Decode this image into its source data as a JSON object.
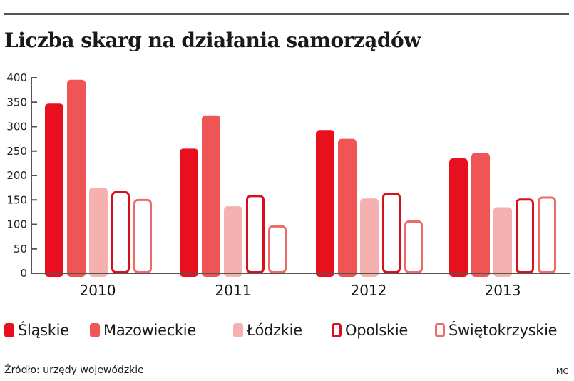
{
  "title": "Liczba skarg na działania samorządów",
  "source": "Źródło: urzędy wojewódzkie",
  "author": "MC",
  "colors": {
    "slaskie": "#e8101e",
    "mazowieckie": "#ef5555",
    "lodzkie": "#f5b0b0",
    "opolskie_border": "#d8101e",
    "swietokrzyskie_border": "#ec6a6a",
    "axis": "#555555"
  },
  "chart_data": {
    "type": "bar",
    "title": "Liczba skarg na działania samorządów",
    "xlabel": "",
    "ylabel": "",
    "ylim": [
      0,
      400
    ],
    "yticks": [
      0,
      50,
      100,
      150,
      200,
      250,
      300,
      350,
      400
    ],
    "grid": false,
    "legend_position": "bottom",
    "categories": [
      "2010",
      "2011",
      "2012",
      "2013"
    ],
    "series": [
      {
        "name": "Śląskie",
        "style": "filled",
        "color": "#e8101e",
        "values": [
          347,
          255,
          293,
          235
        ]
      },
      {
        "name": "Mazowieckie",
        "style": "filled",
        "color": "#ef5555",
        "values": [
          396,
          323,
          275,
          246
        ]
      },
      {
        "name": "Łódzkie",
        "style": "filled",
        "color": "#f5b0b0",
        "values": [
          175,
          137,
          153,
          135
        ]
      },
      {
        "name": "Opolskie",
        "style": "outline",
        "color": "#d8101e",
        "values": [
          168,
          160,
          165,
          153
        ]
      },
      {
        "name": "Świętokrzyskie",
        "style": "outline",
        "color": "#ec6a6a",
        "values": [
          152,
          98,
          108,
          157
        ]
      }
    ]
  }
}
